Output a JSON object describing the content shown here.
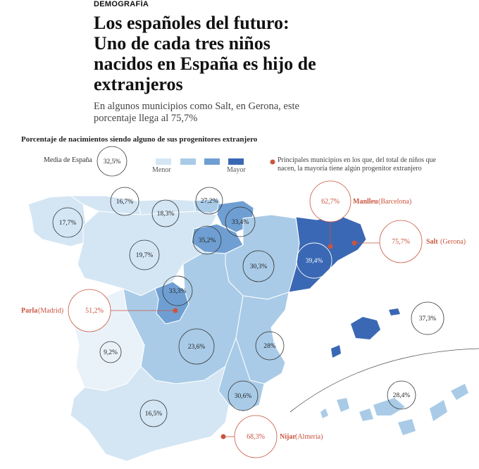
{
  "header": {
    "section": "DEMOGRAFÍA",
    "title": "Los españoles del futuro: Uno de cada tres niños nacidos en España es hijo de extranjeros",
    "subtitle": "En algunos municipios como Salt, en Gerona, este porcentaje llega al 75,7%"
  },
  "map": {
    "title": "Porcentaje de nacimientos siendo alguno de sus progenitores extranjero",
    "average": {
      "label": "Media de España",
      "value": "32,5%"
    },
    "legend": {
      "min_label": "Menor",
      "max_label": "Mayor",
      "colors": [
        "#d4e6f4",
        "#a9cbe7",
        "#6f9fd2",
        "#3a68b4"
      ],
      "note": "Principales municipios en los que, del total de niños que nacen, la mayoría tiene algún progenitor extranjero"
    },
    "region_values": {
      "galicia": "17,7%",
      "asturias": "16,7%",
      "cantabria": "27,2%",
      "pais_vasco": "33,4%",
      "navarra": "35,2%",
      "la_rioja": "35,2%",
      "castilla_leon": "19,7%",
      "leon_area": "18,3%",
      "aragon": "30,3%",
      "cataluna": "39,4%",
      "madrid": "33,3%",
      "castilla_la_mancha": "23,6%",
      "extremadura": "9,2%",
      "comunidad_valenciana": "28%",
      "murcia": "30,6%",
      "andalucia": "16,5%",
      "baleares": "37,3%",
      "canarias": "28,4%"
    },
    "municipalities": [
      {
        "name": "Manlleu",
        "province": "(Barcelona)",
        "value": "62,7%"
      },
      {
        "name": "Salt",
        "province": "(Gerona)",
        "value": "75,7%"
      },
      {
        "name": "Parla",
        "province": "(Madrid)",
        "value": "51,2%"
      },
      {
        "name": "Nijar",
        "province": "(Almería)",
        "value": "68,3%"
      }
    ],
    "accent_color": "#c9553f"
  }
}
